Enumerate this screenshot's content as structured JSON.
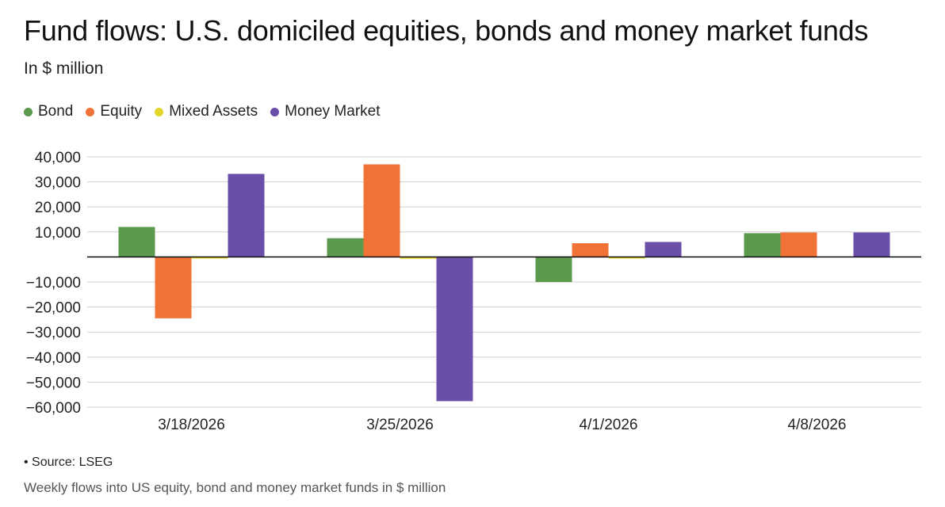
{
  "header": {
    "title": "Fund flows: U.S. domiciled equities, bonds and money market funds",
    "subtitle": "In $ million"
  },
  "footer": {
    "source": "• Source: LSEG",
    "caption": "Weekly flows into US equity, bond and money market funds in $ million"
  },
  "chart_data": {
    "type": "bar",
    "title": "Fund flows: U.S. domiciled equities, bonds and money market funds",
    "ylabel": "In $ million",
    "xlabel": "",
    "categories": [
      "3/18/2026",
      "3/25/2026",
      "4/1/2026",
      "4/8/2026"
    ],
    "series": [
      {
        "name": "Bond",
        "color": "#5b9a4c",
        "values": [
          12000,
          7500,
          -10000,
          9500
        ]
      },
      {
        "name": "Equity",
        "color": "#f07236",
        "values": [
          -24500,
          37000,
          5500,
          9800
        ]
      },
      {
        "name": "Mixed Assets",
        "color": "#e2d62a",
        "values": [
          -600,
          -700,
          -600,
          0
        ]
      },
      {
        "name": "Money Market",
        "color": "#6a4ea8",
        "values": [
          33200,
          -57600,
          6000,
          9800
        ]
      }
    ],
    "ylim": [
      -60000,
      40000
    ],
    "yticks": [
      40000,
      30000,
      20000,
      10000,
      0,
      -10000,
      -20000,
      -30000,
      -40000,
      -50000,
      -60000
    ],
    "ytick_labels": [
      "40,000",
      "30,000",
      "20,000",
      "10,000",
      "",
      "−10,000",
      "−20,000",
      "−30,000",
      "−40,000",
      "−50,000",
      "−60,000"
    ],
    "grid": true,
    "legend_position": "top-left"
  }
}
